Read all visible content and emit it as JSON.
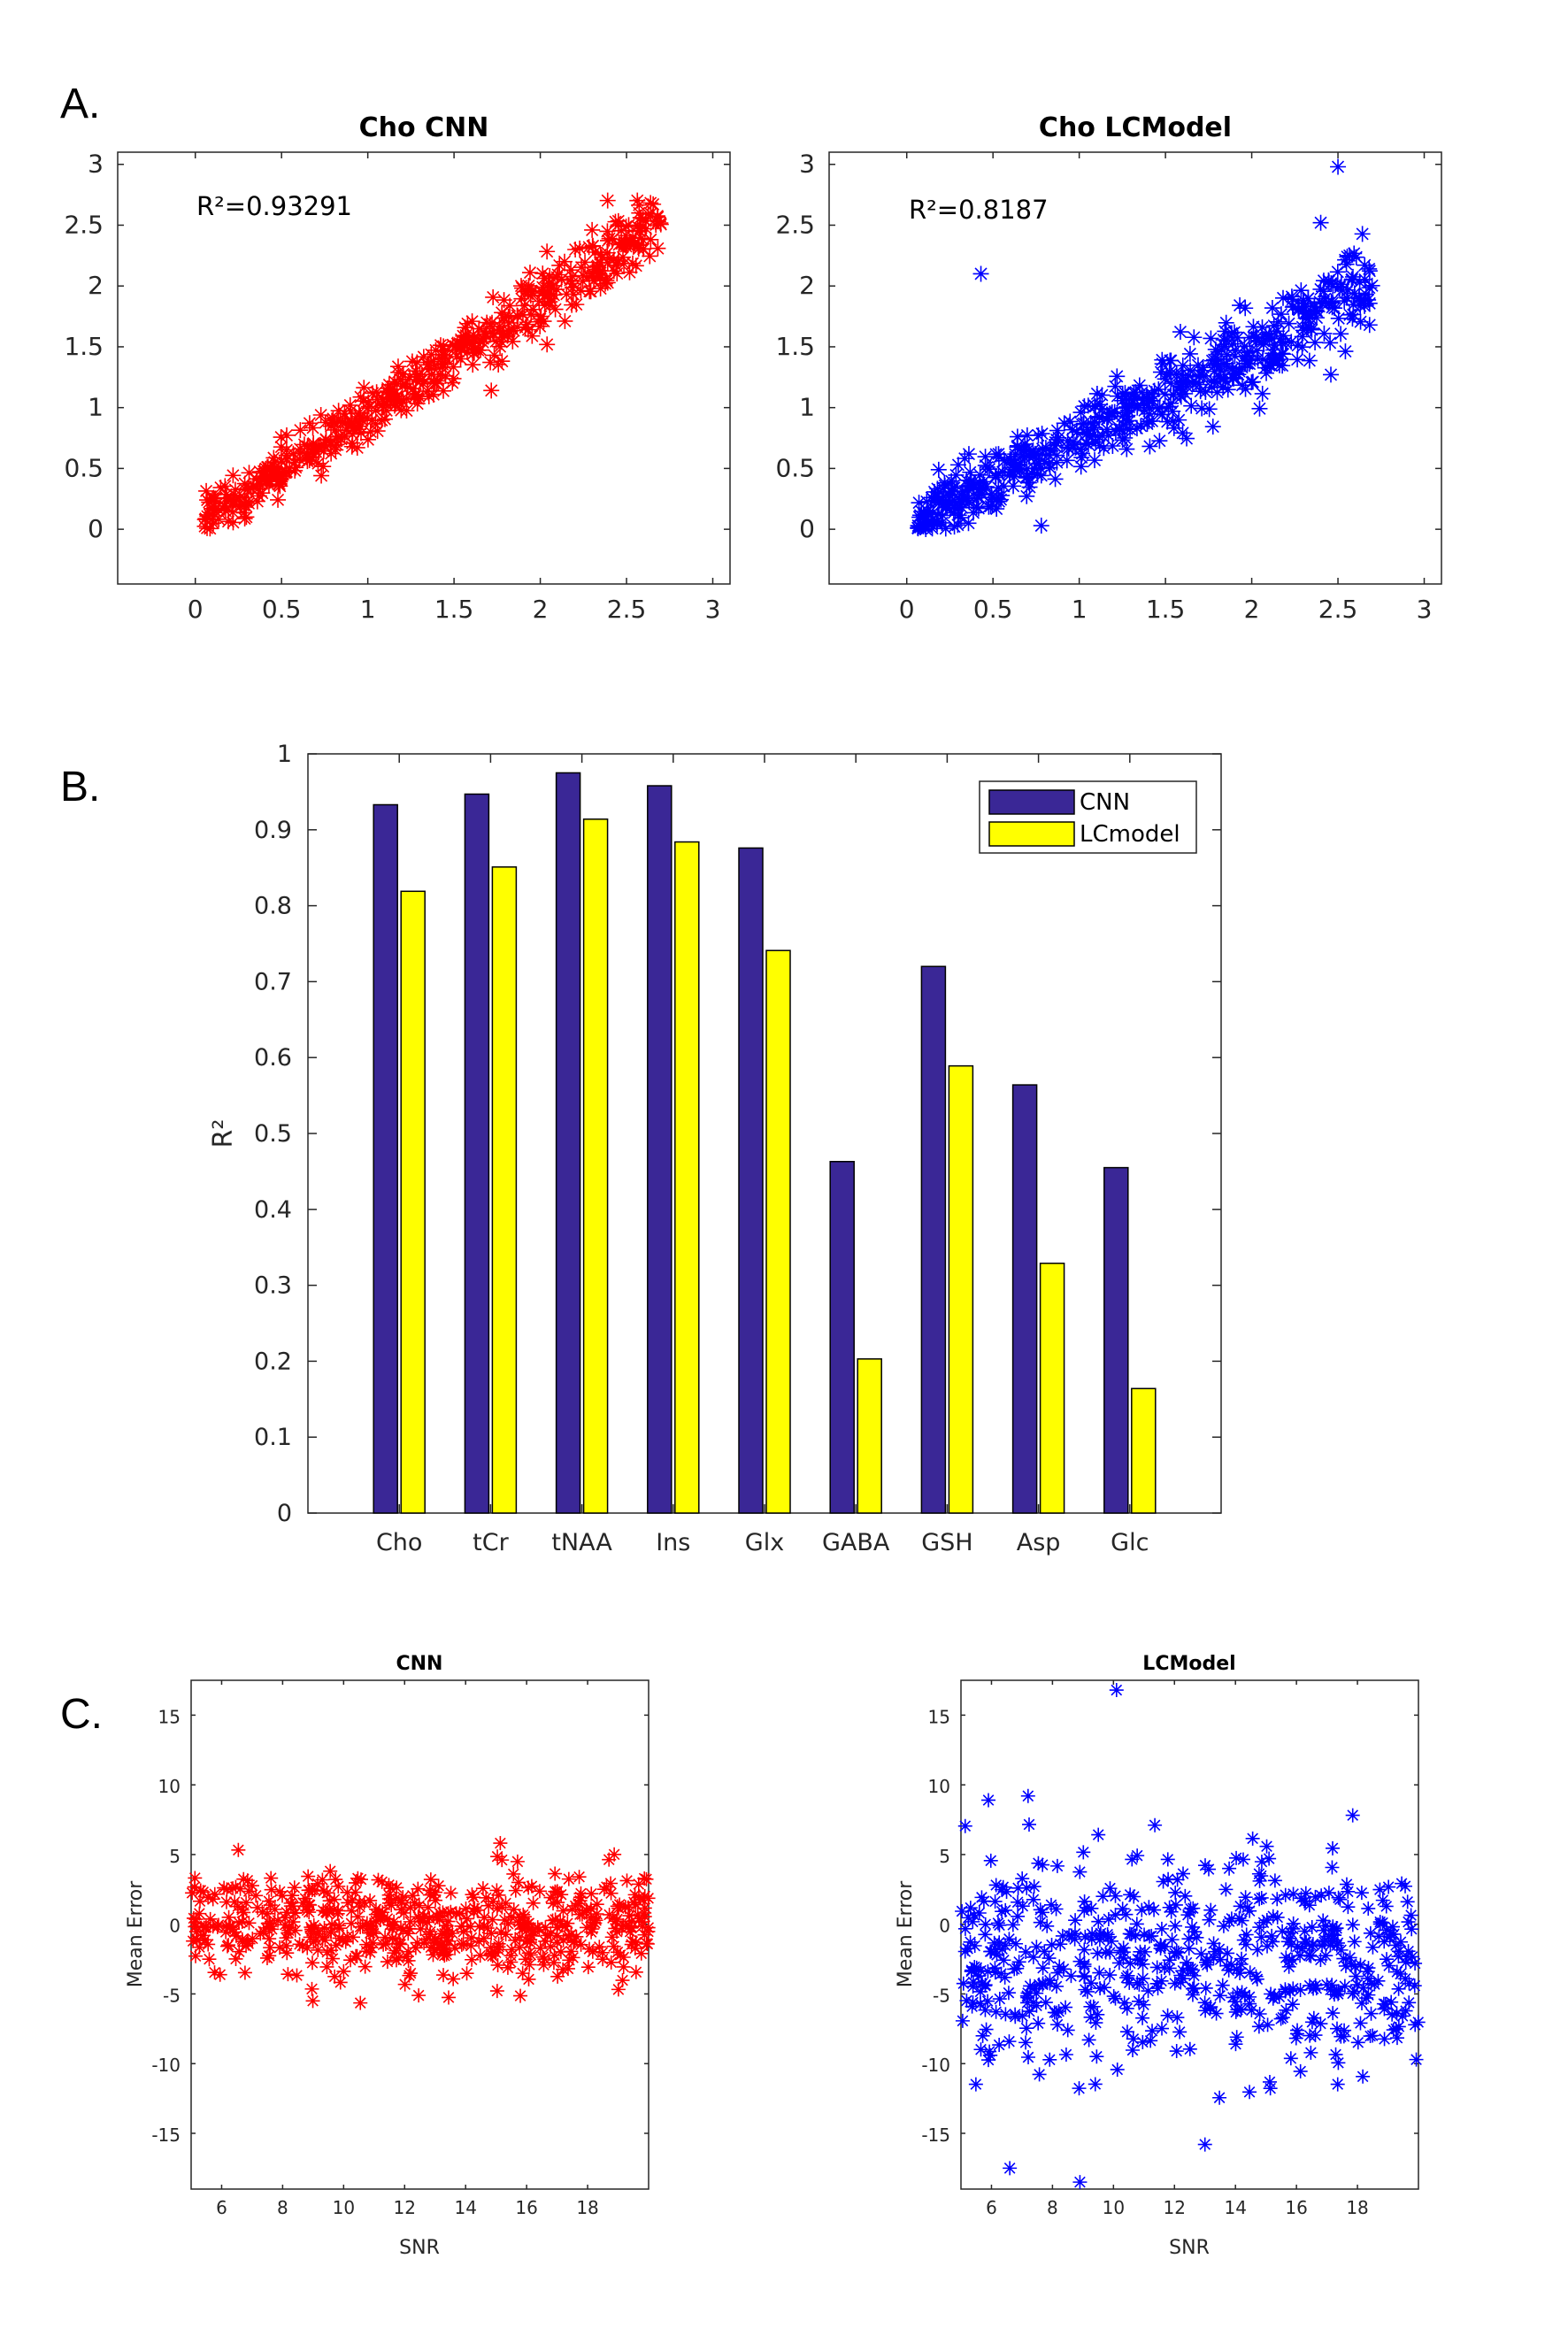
{
  "panels": {
    "a_label": "A.",
    "b_label": "B.",
    "c_label": "C."
  },
  "colors": {
    "cnn_scatter": "#ff0000",
    "lcmodel_scatter": "#0000ff",
    "cnn_bar": "#3a2796",
    "lcmodel_bar": "#ffff00"
  },
  "chart_data": [
    {
      "id": "a_cnn",
      "type": "scatter",
      "title": "Cho CNN",
      "annotation": "R²=0.93291",
      "xlabel": "",
      "ylabel": "",
      "xlim": [
        -0.45,
        3.1
      ],
      "ylim": [
        -0.45,
        3.1
      ],
      "xticks": [
        "0",
        "0.5",
        "1",
        "1.5",
        "2",
        "2.5",
        "3"
      ],
      "yticks": [
        "0",
        "0.5",
        "1",
        "1.5",
        "2",
        "2.5",
        "3"
      ],
      "marker": "*",
      "color": "#ff0000",
      "generated": {
        "n": 520,
        "seed": 11,
        "xmin": 0.05,
        "xmax": 2.7,
        "slope": 0.92,
        "intercept": 0.03,
        "noise": 0.13
      }
    },
    {
      "id": "a_lcmodel",
      "type": "scatter",
      "title": "Cho LCModel",
      "annotation": "R²=0.8187",
      "xlabel": "",
      "ylabel": "",
      "xlim": [
        -0.45,
        3.1
      ],
      "ylim": [
        -0.45,
        3.1
      ],
      "xticks": [
        "0",
        "0.5",
        "1",
        "1.5",
        "2",
        "2.5",
        "3"
      ],
      "yticks": [
        "0",
        "0.5",
        "1",
        "1.5",
        "2",
        "2.5",
        "3"
      ],
      "marker": "*",
      "color": "#0000ff",
      "generated": {
        "n": 560,
        "seed": 23,
        "xmin": 0.05,
        "xmax": 2.7,
        "slope": 0.72,
        "intercept": 0.02,
        "noise": 0.17
      },
      "outliers": [
        [
          0.43,
          2.1
        ],
        [
          2.5,
          2.98
        ],
        [
          0.78,
          0.03
        ],
        [
          2.4,
          2.52
        ]
      ]
    },
    {
      "id": "b_bars",
      "type": "bar",
      "title": "",
      "xlabel": "",
      "ylabel": "R²",
      "ylim": [
        0,
        1
      ],
      "yticks": [
        "0",
        "0.1",
        "0.2",
        "0.3",
        "0.4",
        "0.5",
        "0.6",
        "0.7",
        "0.8",
        "0.9",
        "1"
      ],
      "categories": [
        "Cho",
        "tCr",
        "tNAA",
        "Ins",
        "Glx",
        "GABA",
        "GSH",
        "Asp",
        "Glc"
      ],
      "series": [
        {
          "name": "CNN",
          "color": "#3a2796",
          "values": [
            0.933,
            0.947,
            0.975,
            0.958,
            0.876,
            0.463,
            0.72,
            0.564,
            0.455
          ]
        },
        {
          "name": "LCmodel",
          "color": "#ffff00",
          "values": [
            0.819,
            0.851,
            0.914,
            0.884,
            0.741,
            0.203,
            0.589,
            0.329,
            0.164
          ]
        }
      ],
      "legend": "top-right"
    },
    {
      "id": "c_cnn",
      "type": "scatter",
      "title": "CNN",
      "xlabel": "SNR",
      "ylabel": "Mean Error",
      "xlim": [
        5,
        20
      ],
      "ylim": [
        -19,
        17.5
      ],
      "xticks": [
        "6",
        "8",
        "10",
        "12",
        "14",
        "16",
        "18"
      ],
      "yticks": [
        "15",
        "10",
        "5",
        "0",
        "-5",
        "-10",
        "-15"
      ],
      "marker": "*",
      "color": "#ff0000",
      "generated": {
        "n": 560,
        "seed": 37,
        "xmin": 5,
        "xmax": 20,
        "mean": 0,
        "sd": 1.9
      }
    },
    {
      "id": "c_lcmodel",
      "type": "scatter",
      "title": "LCModel",
      "xlabel": "SNR",
      "ylabel": "Mean Error",
      "xlim": [
        5,
        20
      ],
      "ylim": [
        -19,
        17.5
      ],
      "xticks": [
        "6",
        "8",
        "10",
        "12",
        "14",
        "16",
        "18"
      ],
      "yticks": [
        "15",
        "10",
        "5",
        "0",
        "-5",
        "-10",
        "-15"
      ],
      "marker": "*",
      "color": "#0000ff",
      "generated": {
        "n": 580,
        "seed": 51,
        "xmin": 5,
        "xmax": 20,
        "mean": -2.5,
        "sd": 3.6
      },
      "outliers": [
        [
          10.1,
          16.8
        ],
        [
          8.9,
          -18.5
        ],
        [
          6.6,
          -17.5
        ],
        [
          5.9,
          8.9
        ],
        [
          7.2,
          9.2
        ],
        [
          13.0,
          -15.8
        ]
      ]
    }
  ]
}
